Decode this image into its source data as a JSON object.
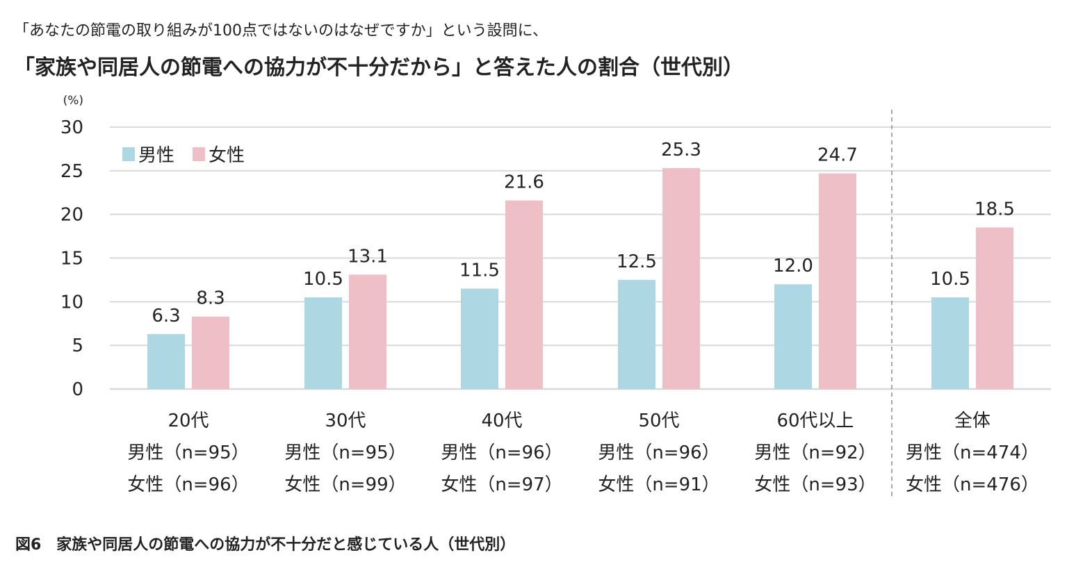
{
  "subtitle": "「あなたの節電の取り組みが100点ではないのはなぜですか」という設問に、",
  "title": "「家族や同居人の節電への協力が不十分だから」と答えた人の割合（世代別）",
  "caption": "図6　家族や同居人の節電への協力が不十分だと感じている人（世代別）",
  "colors": {
    "male": "#add8e3",
    "female": "#efbfc7",
    "grid": "#d9d9d9"
  },
  "chart_data": {
    "type": "bar",
    "ylabel": "(%)",
    "ylim": [
      0,
      30
    ],
    "yticks": [
      "0",
      "5",
      "10",
      "15",
      "20",
      "25",
      "30"
    ],
    "categories": [
      "20代",
      "30代",
      "40代",
      "50代",
      "60代以上",
      "全体"
    ],
    "sample_sizes": {
      "male": [
        "男性（n=95）",
        "男性（n=95）",
        "男性（n=96）",
        "男性（n=96）",
        "男性（n=92）",
        "男性（n=474）"
      ],
      "female": [
        "女性（n=96）",
        "女性（n=99）",
        "女性（n=97）",
        "女性（n=91）",
        "女性（n=93）",
        "女性（n=476）"
      ]
    },
    "series": [
      {
        "name": "男性",
        "values": [
          6.3,
          10.5,
          11.5,
          12.5,
          12.0,
          10.5
        ],
        "labels": [
          "6.3",
          "10.5",
          "11.5",
          "12.5",
          "12.0",
          "10.5"
        ]
      },
      {
        "name": "女性",
        "values": [
          8.3,
          13.1,
          21.6,
          25.3,
          24.7,
          18.5
        ],
        "labels": [
          "8.3",
          "13.1",
          "21.6",
          "25.3",
          "24.7",
          "18.5"
        ]
      }
    ],
    "legend": "top-left",
    "separator_before": "全体"
  }
}
